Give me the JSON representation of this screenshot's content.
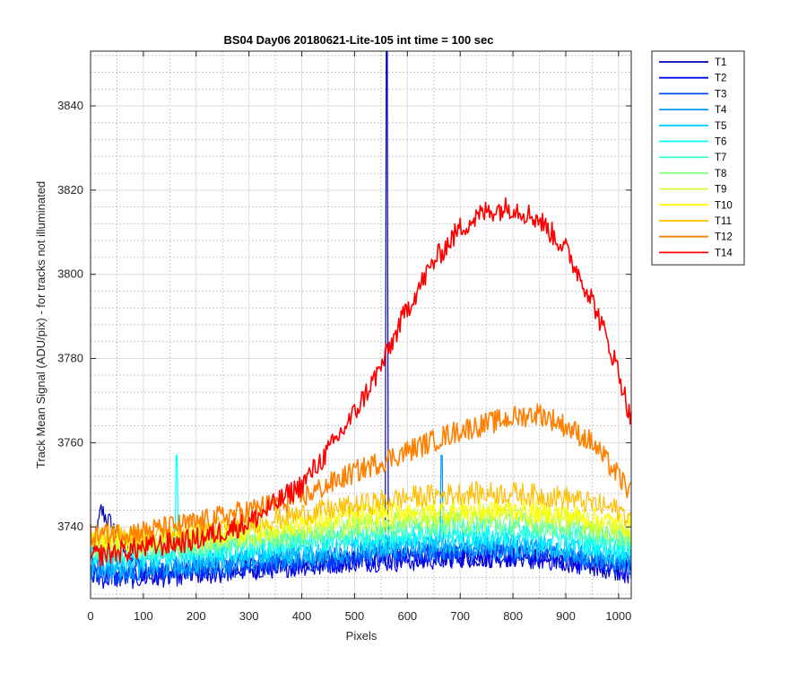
{
  "chart_data": {
    "type": "line",
    "title": "BS04 Day06 20180621-Lite-105 int time = 100 sec",
    "xlabel": "Pixels",
    "ylabel": "Track Mean Signal (ADU/pix) - for tracks not illuminated",
    "xlim": [
      0,
      1024
    ],
    "ylim": [
      3723,
      3853
    ],
    "x_ticks": [
      0,
      100,
      200,
      300,
      400,
      500,
      600,
      700,
      800,
      900,
      1000
    ],
    "y_ticks": [
      3740,
      3760,
      3780,
      3800,
      3820,
      3840
    ],
    "grid": "major solid, minor dotted",
    "legend_position": "outside-right",
    "series": [
      {
        "name": "T1",
        "color": "#0000b4",
        "x": [
          0,
          20,
          100,
          200,
          300,
          400,
          500,
          560,
          600,
          700,
          800,
          900,
          1000,
          1024
        ],
        "y": [
          3729,
          3744,
          3729,
          3729,
          3730,
          3731,
          3732,
          3733,
          3733,
          3733,
          3733,
          3732,
          3730,
          3730
        ],
        "spike": {
          "x": 561,
          "y": 3853
        }
      },
      {
        "name": "T2",
        "color": "#0000f0",
        "x": [
          0,
          100,
          200,
          300,
          400,
          500,
          600,
          700,
          800,
          900,
          1000,
          1024
        ],
        "y": [
          3728,
          3728,
          3729,
          3730,
          3731,
          3732,
          3732,
          3733,
          3733,
          3732,
          3730,
          3729
        ]
      },
      {
        "name": "T3",
        "color": "#0048ff",
        "x": [
          0,
          100,
          200,
          300,
          400,
          500,
          600,
          700,
          800,
          900,
          1000,
          1024
        ],
        "y": [
          3729,
          3729,
          3730,
          3731,
          3732,
          3733,
          3734,
          3734,
          3734,
          3733,
          3731,
          3731
        ]
      },
      {
        "name": "T4",
        "color": "#0096ff",
        "x": [
          0,
          100,
          200,
          300,
          400,
          500,
          600,
          700,
          800,
          900,
          1000,
          1024
        ],
        "y": [
          3730,
          3730,
          3731,
          3732,
          3733,
          3734,
          3735,
          3735,
          3735,
          3734,
          3732,
          3732
        ],
        "spike": {
          "x": 665,
          "y": 3757
        }
      },
      {
        "name": "T5",
        "color": "#00ccff",
        "x": [
          0,
          100,
          200,
          300,
          400,
          500,
          600,
          700,
          800,
          900,
          1000,
          1024
        ],
        "y": [
          3731,
          3731,
          3732,
          3733,
          3734,
          3735,
          3736,
          3736,
          3736,
          3735,
          3733,
          3733
        ]
      },
      {
        "name": "T6",
        "color": "#00ffff",
        "x": [
          0,
          100,
          200,
          300,
          400,
          500,
          600,
          700,
          800,
          900,
          1000,
          1024
        ],
        "y": [
          3733,
          3733,
          3734,
          3735,
          3736,
          3737,
          3738,
          3738,
          3738,
          3737,
          3735,
          3735
        ],
        "spike": {
          "x": 163,
          "y": 3757
        }
      },
      {
        "name": "T7",
        "color": "#40ffcf",
        "x": [
          0,
          100,
          200,
          300,
          400,
          500,
          600,
          700,
          800,
          900,
          1000,
          1024
        ],
        "y": [
          3734,
          3734,
          3735,
          3736,
          3737,
          3738,
          3739,
          3740,
          3740,
          3739,
          3737,
          3736
        ]
      },
      {
        "name": "T8",
        "color": "#80ff80",
        "x": [
          0,
          100,
          200,
          300,
          400,
          500,
          600,
          700,
          800,
          900,
          1000,
          1024
        ],
        "y": [
          3735,
          3735,
          3736,
          3737,
          3738,
          3740,
          3741,
          3741,
          3741,
          3740,
          3738,
          3738
        ]
      },
      {
        "name": "T9",
        "color": "#cfff40",
        "x": [
          0,
          100,
          200,
          300,
          400,
          500,
          600,
          700,
          800,
          900,
          1000,
          1024
        ],
        "y": [
          3736,
          3736,
          3737,
          3738,
          3740,
          3741,
          3742,
          3743,
          3743,
          3742,
          3739,
          3739
        ]
      },
      {
        "name": "T10",
        "color": "#ffff00",
        "x": [
          0,
          100,
          200,
          300,
          400,
          500,
          600,
          700,
          800,
          900,
          1000,
          1024
        ],
        "y": [
          3737,
          3737,
          3738,
          3739,
          3741,
          3743,
          3744,
          3744,
          3744,
          3743,
          3741,
          3740
        ]
      },
      {
        "name": "T11",
        "color": "#ffbf00",
        "x": [
          0,
          100,
          200,
          300,
          400,
          500,
          600,
          700,
          800,
          900,
          1000,
          1024
        ],
        "y": [
          3738,
          3738,
          3739,
          3741,
          3743,
          3745,
          3747,
          3748,
          3748,
          3747,
          3744,
          3742
        ]
      },
      {
        "name": "T12",
        "color": "#ff8000",
        "x": [
          0,
          100,
          200,
          300,
          400,
          500,
          600,
          700,
          800,
          850,
          900,
          950,
          1000,
          1024
        ],
        "y": [
          3738,
          3739,
          3741,
          3744,
          3747,
          3753,
          3758,
          3763,
          3766,
          3767,
          3764,
          3760,
          3752,
          3748
        ]
      },
      {
        "name": "T14",
        "color": "#ff0000",
        "x": [
          0,
          100,
          200,
          300,
          400,
          450,
          500,
          550,
          600,
          650,
          700,
          750,
          800,
          850,
          900,
          950,
          1000,
          1024
        ],
        "y": [
          3733,
          3735,
          3737,
          3741,
          3750,
          3758,
          3767,
          3778,
          3792,
          3803,
          3811,
          3815,
          3816,
          3813,
          3806,
          3794,
          3777,
          3765
        ]
      }
    ]
  }
}
